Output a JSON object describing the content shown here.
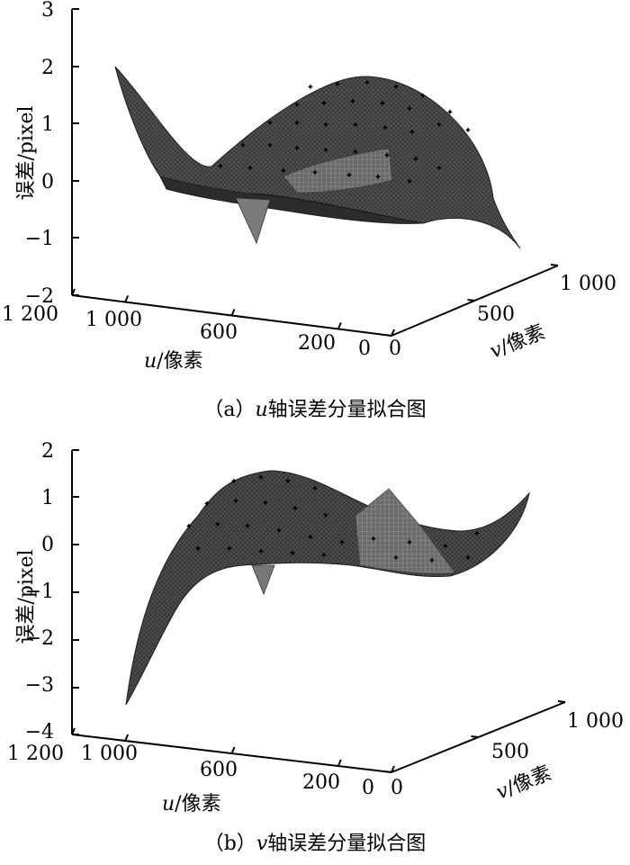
{
  "chart_data": [
    {
      "type": "surface3d",
      "caption_prefix": "（a）",
      "caption_var": "u",
      "caption_rest": "轴误差分量拟合图",
      "zlabel": "误差/pixel",
      "xlabel_var": "u",
      "xlabel_unit": "/像素",
      "ylabel_var": "v",
      "ylabel_unit": "/像素",
      "z_ticks": [
        "3",
        "2",
        "1",
        "0",
        "−1",
        "−2"
      ],
      "zlim": [
        -2,
        3
      ],
      "u_ticks": [
        "1 200",
        "1 000",
        "600",
        "200",
        "0"
      ],
      "u_tick_values": [
        1200,
        1000,
        600,
        200,
        0
      ],
      "v_ticks": [
        "0",
        "500",
        "1 000"
      ],
      "v_tick_values": [
        0,
        500,
        1000
      ],
      "xlim": [
        0,
        1200
      ],
      "ylim": [
        0,
        1000
      ],
      "corner_values": {
        "u1200_v0": 1.9,
        "u0_v0": -1.2,
        "u0_v1000": 0.3,
        "u1200_v1000": 0.0
      },
      "spike": {
        "u": 800,
        "v": 150,
        "z": -1.1
      },
      "grid": false
    },
    {
      "type": "surface3d",
      "caption_prefix": "（b）",
      "caption_var": "v",
      "caption_rest": "轴误差分量拟合图",
      "zlabel": "误差/pixel",
      "xlabel_var": "u",
      "xlabel_unit": "/像素",
      "ylabel_var": "v",
      "ylabel_unit": "/像素",
      "z_ticks": [
        "2",
        "1",
        "0",
        "−1",
        "−2",
        "−3",
        "−4"
      ],
      "zlim": [
        -4,
        2
      ],
      "u_ticks": [
        "1 200",
        "1 000",
        "600",
        "200",
        "0"
      ],
      "u_tick_values": [
        1200,
        1000,
        600,
        200,
        0
      ],
      "v_ticks": [
        "0",
        "500",
        "1 000"
      ],
      "v_tick_values": [
        0,
        500,
        1000
      ],
      "xlim": [
        0,
        1200
      ],
      "ylim": [
        0,
        1000
      ],
      "corner_values": {
        "u1200_v0": -3.3,
        "u0_v0": 0.8,
        "u0_v1000": 1.0,
        "u1200_v1000": 0.2
      },
      "spike": {
        "u": 300,
        "v": 400,
        "z": 1.1
      },
      "grid": false
    }
  ]
}
